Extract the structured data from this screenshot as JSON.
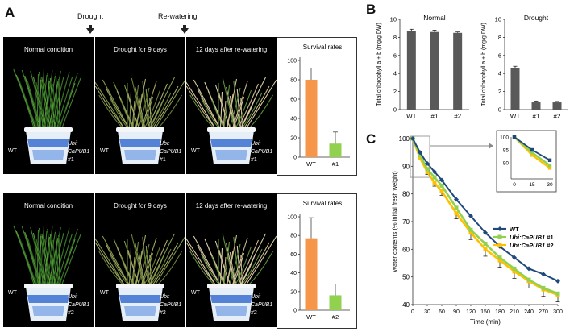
{
  "panels": {
    "a": "A",
    "b": "B",
    "c": "C"
  },
  "treatments": {
    "drought_label": "Drought",
    "rewater_label": "Re-watering"
  },
  "photo_rows": [
    {
      "line": "#1",
      "photos": [
        {
          "caption": "Normal condition",
          "wt": "WT",
          "tag_italic": "Ubi:",
          "tag_gene": "CaPUB1",
          "tag_line": "#1"
        },
        {
          "caption": "Drought for 9 days",
          "wt": "WT",
          "tag_italic": "Ubi:",
          "tag_gene": "CaPUB1",
          "tag_line": "#1"
        },
        {
          "caption": "12 days after re-watering",
          "wt": "WT",
          "tag_italic": "Ubi:",
          "tag_gene": "CaPUB1",
          "tag_line": "#1"
        }
      ]
    },
    {
      "line": "#2",
      "photos": [
        {
          "caption": "Normal condition",
          "wt": "WT",
          "tag_italic": "Ubi:",
          "tag_gene": "CaPUB1",
          "tag_line": "#2"
        },
        {
          "caption": "Drought for 9 days",
          "wt": "WT",
          "tag_italic": "Ubi:",
          "tag_gene": "CaPUB1",
          "tag_line": "#2"
        },
        {
          "caption": "12 days after re-watering",
          "wt": "WT",
          "tag_italic": "Ubi:",
          "tag_gene": "CaPUB1",
          "tag_line": "#2"
        }
      ]
    }
  ],
  "colors": {
    "wt_bar": "#f5964a",
    "line_bar": "#92d050",
    "grey_bar": "#595959",
    "wt_line": "#1f497d",
    "l1_line": "#92d050",
    "l2_line": "#ffc000"
  },
  "chart_data": [
    {
      "id": "survival1",
      "type": "bar",
      "title": "Survival rates",
      "categories": [
        "WT",
        "#1"
      ],
      "values": [
        80,
        14
      ],
      "errors": [
        12,
        12
      ],
      "ylim": [
        0,
        100
      ],
      "yticks": [
        0,
        20,
        40,
        60,
        80,
        100
      ]
    },
    {
      "id": "survival2",
      "type": "bar",
      "title": "Survival rates",
      "categories": [
        "WT",
        "#2"
      ],
      "values": [
        77,
        16
      ],
      "errors": [
        22,
        12
      ],
      "ylim": [
        0,
        100
      ],
      "yticks": [
        0,
        20,
        40,
        60,
        80,
        100
      ]
    },
    {
      "id": "chl_normal",
      "type": "bar",
      "title": "Normal",
      "ylabel": "Total chlorophyll a + b (mg/g DW)",
      "categories": [
        "WT",
        "#1",
        "#2"
      ],
      "values": [
        8.7,
        8.6,
        8.5
      ],
      "errors": [
        0.2,
        0.2,
        0.1
      ],
      "ylim": [
        0,
        10
      ],
      "yticks": [
        0,
        2,
        4,
        6,
        8,
        10
      ]
    },
    {
      "id": "chl_drought",
      "type": "bar",
      "title": "Drought",
      "ylabel": "Total chlorophyll a + b (mg/g DW)",
      "categories": [
        "WT",
        "#1",
        "#2"
      ],
      "values": [
        4.6,
        0.8,
        0.8
      ],
      "errors": [
        0.2,
        0.15,
        0.1
      ],
      "ylim": [
        0,
        10
      ],
      "yticks": [
        0,
        2,
        4,
        6,
        8,
        10
      ]
    },
    {
      "id": "water",
      "type": "line",
      "xlabel": "Time (min)",
      "ylabel": "Water contents (% initial fresh weight)",
      "x": [
        0,
        15,
        30,
        45,
        60,
        90,
        120,
        150,
        180,
        210,
        240,
        270,
        300
      ],
      "xlim": [
        0,
        300
      ],
      "ylim": [
        40,
        100
      ],
      "xticks": [
        0,
        30,
        60,
        90,
        120,
        150,
        180,
        210,
        240,
        270,
        300
      ],
      "yticks": [
        40,
        50,
        60,
        70,
        80,
        90,
        100
      ],
      "series": [
        {
          "name": "WT",
          "values": [
            100,
            95,
            91,
            88,
            85,
            78,
            72,
            66,
            61,
            57,
            53,
            51,
            48.5
          ]
        },
        {
          "name": "Ubi:CaPUB1 #1",
          "values": [
            100,
            94,
            89,
            86,
            83,
            75,
            67,
            62,
            57,
            53,
            49,
            46,
            44
          ]
        },
        {
          "name": "Ubi:CaPUB1 #2",
          "values": [
            100,
            93,
            88,
            84,
            81,
            73,
            66,
            60,
            56,
            52,
            48.5,
            45.5,
            43.5
          ]
        }
      ],
      "error_down": [
        0,
        0.5,
        1,
        1.2,
        1.5,
        2,
        2.5,
        2.5,
        2.5,
        2.5,
        2.5,
        2.5,
        2.5
      ],
      "legend": [
        {
          "italic": "",
          "plain": "WT"
        },
        {
          "italic": "Ubi:CaPUB1",
          "plain": " #1"
        },
        {
          "italic": "Ubi:CaPUB1",
          "plain": " #2"
        }
      ],
      "inset": {
        "x": [
          0,
          15,
          30
        ],
        "xticks": [
          0,
          15,
          30
        ],
        "ylim": [
          85,
          100
        ],
        "yticks": [
          90,
          95,
          100
        ]
      }
    }
  ]
}
